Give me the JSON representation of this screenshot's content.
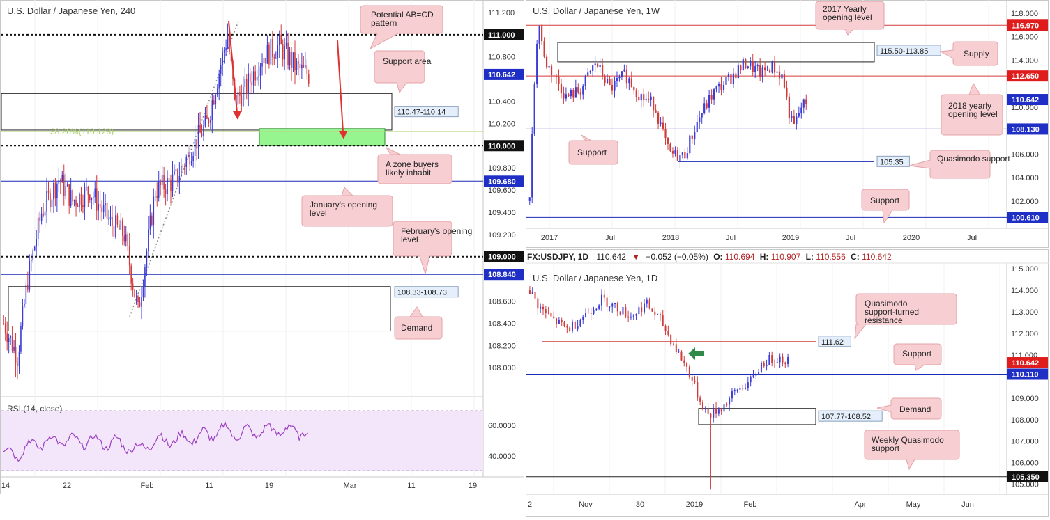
{
  "colors": {
    "up": "#3b3bd6",
    "down": "#d23b3b",
    "blue_line": "#1a2bb8",
    "red_line": "#d23b3b",
    "callout_fill": "#f7cfd2",
    "callout_border": "#e3a3a8",
    "green_zone": "#96f58f",
    "rsi_bg": "#f3e6fb",
    "rsi_line": "#9b3fc0"
  },
  "chart_data": [
    {
      "id": "h4",
      "type": "candlestick",
      "title": "U.S. Dollar / Japanese Yen, 240",
      "ylim": [
        107.75,
        111.3
      ],
      "ytick_labels": [
        "111.200",
        "110.800",
        "110.400",
        "110.200",
        "109.800",
        "109.600",
        "109.400",
        "109.200",
        "108.600",
        "108.400",
        "108.200",
        "108.000"
      ],
      "xtick_labels": [
        "14",
        "22",
        "Feb",
        "11",
        "19",
        "Mar",
        "11",
        "19"
      ],
      "price_tags": [
        {
          "label": "111.000",
          "style": "black"
        },
        {
          "label": "110.642",
          "style": "blue"
        },
        {
          "label": "110.000",
          "style": "black"
        },
        {
          "label": "109.680",
          "style": "blue"
        },
        {
          "label": "109.000",
          "style": "black"
        },
        {
          "label": "108.840",
          "style": "blue"
        }
      ],
      "levels": {
        "dashed": [
          111.0,
          110.0,
          109.0
        ],
        "solid": [
          109.68,
          108.84
        ]
      },
      "zones": [
        {
          "label": "110.47-110.14",
          "top": 110.47,
          "bottom": 110.14
        },
        {
          "label": "108.33-108.73",
          "top": 108.73,
          "bottom": 108.33
        }
      ],
      "green_zone": {
        "top": 110.128,
        "bottom": 110.0
      },
      "fib": {
        "label": "38.20%(110.128)",
        "value": 110.128
      },
      "annotations": [
        "Potential AB=CD pattern",
        "Support area",
        "A zone buyers likely inhabit",
        "January's opening level",
        "February's opening level",
        "Demand"
      ],
      "rsi": {
        "title": "RSI (14, close)",
        "ytick_labels": [
          "60.0000",
          "40.0000"
        ],
        "upper": 70,
        "lower": 30
      },
      "last_price": 110.642
    },
    {
      "id": "weekly",
      "type": "candlestick",
      "title": "U.S. Dollar / Japanese Yen, 1W",
      "ylim": [
        99.8,
        119.0
      ],
      "ytick_labels": [
        "118.000",
        "116.000",
        "114.000",
        "110.000",
        "106.000",
        "104.000",
        "102.000"
      ],
      "xtick_labels": [
        "2017",
        "Jul",
        "2018",
        "Jul",
        "2019",
        "Jul",
        "2020",
        "Jul"
      ],
      "price_tags": [
        {
          "label": "116.970",
          "style": "red"
        },
        {
          "label": "112.650",
          "style": "red"
        },
        {
          "label": "110.642",
          "style": "blue"
        },
        {
          "label": "108.130",
          "style": "blue"
        },
        {
          "label": "100.610",
          "style": "blue"
        }
      ],
      "levels": {
        "red": [
          116.97,
          112.65
        ],
        "blue": [
          108.13,
          100.61
        ]
      },
      "zones": [
        {
          "label": "115.50-113.85",
          "top": 115.5,
          "bottom": 113.85
        }
      ],
      "qm": {
        "label": "105.35",
        "value": 105.35
      },
      "annotations": [
        "2017 Yearly opening level",
        "Supply",
        "2018 yearly opening level",
        "Support",
        "Quasimodo support",
        "Support"
      ]
    },
    {
      "id": "daily",
      "type": "candlestick",
      "header": {
        "symbol": "FX:USDJPY, 1D",
        "last": "110.642",
        "change": "−0.052 (−0.05%)",
        "o_label": "O:",
        "o": "110.694",
        "h_label": "H:",
        "h": "110.907",
        "l_label": "L:",
        "l": "110.556",
        "c_label": "C:",
        "c": "110.642"
      },
      "title": "U.S. Dollar / Japanese Yen, 1D",
      "ylim": [
        104.6,
        115.2
      ],
      "ytick_labels": [
        "115.000",
        "114.000",
        "113.000",
        "112.000",
        "111.000",
        "109.000",
        "108.000",
        "107.000",
        "106.000",
        "105.000"
      ],
      "xtick_labels": [
        "2",
        "Nov",
        "30",
        "2019",
        "Feb",
        "Apr",
        "May",
        "Jun"
      ],
      "price_tags": [
        {
          "label": "110.642",
          "style": "red"
        },
        {
          "label": "110.110",
          "style": "blue"
        },
        {
          "label": "105.350",
          "style": "black"
        }
      ],
      "levels": {
        "red": [
          111.62
        ],
        "blue": [
          110.11
        ],
        "black": [
          105.35
        ]
      },
      "zones": [
        {
          "label": "107.77-108.52",
          "top": 108.52,
          "bottom": 107.77
        }
      ],
      "qm_resistance": {
        "label": "111.62",
        "value": 111.62
      },
      "annotations": [
        "Quasimodo support-turned resistance",
        "Support",
        "Demand",
        "Weekly Quasimodo support"
      ]
    }
  ]
}
